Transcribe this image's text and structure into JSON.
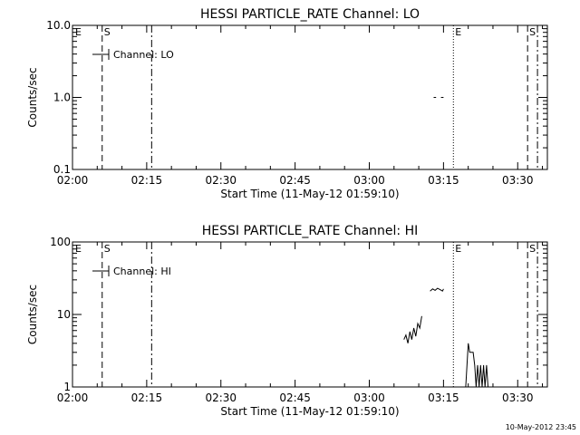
{
  "footer": {
    "timestamp": "10-May-2012 23:45"
  },
  "chart_data": [
    {
      "type": "line",
      "title": "HESSI PARTICLE_RATE Channel: LO",
      "xlabel": "Start Time (11-May-12 01:59:10)",
      "ylabel": "Counts/sec",
      "yscale": "log",
      "xlim": [
        "02:00",
        "03:36"
      ],
      "ylim": [
        0.1,
        10.0
      ],
      "x_ticks": [
        "02:00",
        "02:15",
        "02:30",
        "02:45",
        "03:00",
        "03:15",
        "03:30"
      ],
      "y_ticks": [
        {
          "value": 0.1,
          "label": "0.1"
        },
        {
          "value": 1.0,
          "label": "1.0"
        },
        {
          "value": 10.0,
          "label": "10.0"
        }
      ],
      "legend": {
        "label": "Channel: LO",
        "position": "top-left"
      },
      "grid": false,
      "markers": [
        {
          "time": "02:06",
          "style": "dashed",
          "label": "S"
        },
        {
          "time": "02:16",
          "style": "dashdot",
          "label": ""
        },
        {
          "time": "03:17",
          "style": "dotted",
          "label": "E"
        },
        {
          "time": "03:32",
          "style": "dashed",
          "label": "S"
        },
        {
          "time": "03:34",
          "style": "dashdot",
          "label": ""
        }
      ],
      "start_label": "E",
      "series": [
        {
          "label": "Channel: LO",
          "segments": [
            [
              {
                "t": "03:13",
                "y": 1.0
              },
              {
                "t": "03:13.5",
                "y": 1.0
              }
            ],
            [
              {
                "t": "03:14.5",
                "y": 1.0
              },
              {
                "t": "03:15",
                "y": 1.0
              }
            ]
          ]
        }
      ]
    },
    {
      "type": "line",
      "title": "HESSI PARTICLE_RATE Channel: HI",
      "xlabel": "Start Time (11-May-12 01:59:10)",
      "ylabel": "Counts/sec",
      "yscale": "log",
      "xlim": [
        "02:00",
        "03:36"
      ],
      "ylim": [
        1,
        100
      ],
      "x_ticks": [
        "02:00",
        "02:15",
        "02:30",
        "02:45",
        "03:00",
        "03:15",
        "03:30"
      ],
      "y_ticks": [
        {
          "value": 1,
          "label": "1"
        },
        {
          "value": 10,
          "label": "10"
        },
        {
          "value": 100,
          "label": "100"
        }
      ],
      "legend": {
        "label": "Channel: HI",
        "position": "top-left"
      },
      "grid": false,
      "markers": [
        {
          "time": "02:06",
          "style": "dashed",
          "label": "S"
        },
        {
          "time": "02:16",
          "style": "dashdot",
          "label": ""
        },
        {
          "time": "03:17",
          "style": "dotted",
          "label": "E"
        },
        {
          "time": "03:32",
          "style": "dashed",
          "label": "S"
        },
        {
          "time": "03:34",
          "style": "dashdot",
          "label": ""
        }
      ],
      "start_label": "E",
      "series": [
        {
          "label": "Channel: HI",
          "segments": [
            [
              {
                "t": "03:07.0",
                "y": 4.5
              },
              {
                "t": "03:07.4",
                "y": 5.2
              },
              {
                "t": "03:07.8",
                "y": 4.0
              },
              {
                "t": "03:08.2",
                "y": 5.8
              },
              {
                "t": "03:08.6",
                "y": 4.5
              },
              {
                "t": "03:09.0",
                "y": 6.5
              },
              {
                "t": "03:09.4",
                "y": 5.0
              },
              {
                "t": "03:09.8",
                "y": 7.5
              },
              {
                "t": "03:10.2",
                "y": 6.5
              },
              {
                "t": "03:10.6",
                "y": 9.5
              }
            ],
            [
              {
                "t": "03:12.3",
                "y": 21
              },
              {
                "t": "03:12.8",
                "y": 22.5
              },
              {
                "t": "03:13.3",
                "y": 21.5
              },
              {
                "t": "03:13.8",
                "y": 23
              },
              {
                "t": "03:14.3",
                "y": 22
              },
              {
                "t": "03:14.8",
                "y": 21
              },
              {
                "t": "03:15.0",
                "y": 22.5
              }
            ],
            [
              {
                "t": "03:19.5",
                "y": 1.0
              },
              {
                "t": "03:20.0",
                "y": 4.0
              },
              {
                "t": "03:20.3",
                "y": 3.0
              },
              {
                "t": "03:21.0",
                "y": 3.0
              },
              {
                "t": "03:21.3",
                "y": 2.0
              },
              {
                "t": "03:21.6",
                "y": 1.0
              },
              {
                "t": "03:21.9",
                "y": 2.0
              },
              {
                "t": "03:22.2",
                "y": 1.0
              },
              {
                "t": "03:22.5",
                "y": 2.0
              },
              {
                "t": "03:22.8",
                "y": 1.0
              },
              {
                "t": "03:23.1",
                "y": 2.0
              },
              {
                "t": "03:23.4",
                "y": 1.0
              },
              {
                "t": "03:23.7",
                "y": 2.0
              },
              {
                "t": "03:24.0",
                "y": 1.0
              }
            ]
          ]
        }
      ]
    }
  ]
}
